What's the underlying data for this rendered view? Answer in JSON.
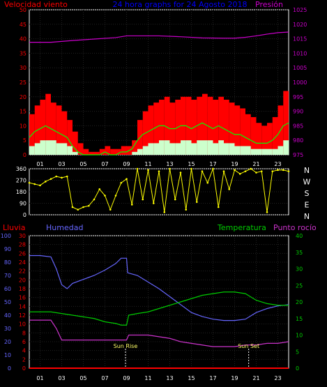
{
  "header": {
    "wind_label": "Velocidad viento",
    "title": "24 hora graphs for 24 Agosto 2018",
    "pressure_label": "Presión"
  },
  "colors": {
    "background": "#000000",
    "axis": "#ffffff",
    "wind_gust": "#ff0000",
    "wind_avg": "#00ff00",
    "wind_low": "#ccffcc",
    "pressure": "#cc00cc",
    "direction": "#ffff00",
    "temperature": "#00cc00",
    "humidity": "#6666ff",
    "dew_point": "#cc33cc",
    "rain": "#ff0000",
    "title": "#0000ff"
  },
  "bottom_header": {
    "rain_label": "Lluvia",
    "humidity_label": "Humedad",
    "temperature_label": "Temperatura",
    "dew_label": "Punto rocío"
  },
  "annotations": {
    "sunrise": "Sun Rise",
    "sunset": "Sun Set"
  },
  "chart_data": [
    {
      "type": "line",
      "id": "wind_pressure",
      "x_ticks": [
        "01",
        "03",
        "05",
        "07",
        "09",
        "11",
        "13",
        "15",
        "17",
        "19",
        "21",
        "23"
      ],
      "xlim": [
        0,
        24
      ],
      "y_left_ticks": [
        "0",
        "5",
        "10",
        "15",
        "20",
        "25",
        "30",
        "35",
        "40",
        "45",
        "50"
      ],
      "y_left_lim": [
        0,
        50
      ],
      "y_right_ticks": [
        "975",
        "980",
        "985",
        "990",
        "995",
        "1000",
        "1005",
        "1010",
        "1015",
        "1020",
        "1025"
      ],
      "y_right_lim": [
        975,
        1025
      ],
      "grid": true,
      "series": [
        {
          "name": "Velocidad viento",
          "style": "gust",
          "x": [
            0,
            0.5,
            1,
            1.5,
            2,
            2.5,
            3,
            3.5,
            4,
            4.5,
            5,
            5.5,
            6,
            6.5,
            7,
            7.5,
            8,
            8.5,
            9,
            9.5,
            10,
            10.5,
            11,
            11.5,
            12,
            12.5,
            13,
            13.5,
            14,
            14.5,
            15,
            15.5,
            16,
            16.5,
            17,
            17.5,
            18,
            18.5,
            19,
            19.5,
            20,
            20.5,
            21,
            21.5,
            22,
            22.5,
            23,
            23.5,
            24
          ],
          "values": [
            14,
            17,
            19,
            21,
            18,
            17,
            15,
            12,
            8,
            4,
            2,
            1,
            1,
            2,
            3,
            2,
            2,
            3,
            3,
            5,
            12,
            15,
            17,
            18,
            19,
            20,
            18,
            19,
            20,
            20,
            19,
            20,
            21,
            20,
            19,
            20,
            19,
            18,
            17,
            16,
            14,
            13,
            11,
            10,
            11,
            13,
            17,
            22,
            23
          ]
        },
        {
          "name": "",
          "style": "average",
          "x": [
            0,
            0.5,
            1,
            1.5,
            2,
            2.5,
            3,
            3.5,
            4,
            4.5,
            5,
            5.5,
            6,
            6.5,
            7,
            7.5,
            8,
            8.5,
            9,
            9.5,
            10,
            10.5,
            11,
            11.5,
            12,
            12.5,
            13,
            13.5,
            14,
            14.5,
            15,
            15.5,
            16,
            16.5,
            17,
            17.5,
            18,
            18.5,
            19,
            19.5,
            20,
            20.5,
            21,
            21.5,
            22,
            22.5,
            23,
            23.5,
            24
          ],
          "values": [
            6,
            8,
            9,
            10,
            9,
            8,
            7,
            6,
            3,
            1,
            0,
            0,
            0,
            0,
            1,
            0,
            0,
            1,
            1,
            2,
            5,
            7,
            8,
            9,
            10,
            10,
            9,
            9,
            10,
            10,
            9,
            10,
            11,
            10,
            9,
            10,
            9,
            8,
            7,
            7,
            6,
            5,
            4,
            4,
            4,
            5,
            7,
            10,
            11
          ]
        },
        {
          "name": "",
          "style": "low",
          "x": [
            0,
            0.5,
            1,
            1.5,
            2,
            2.5,
            3,
            3.5,
            4,
            4.5,
            5,
            5.5,
            6,
            6.5,
            7,
            7.5,
            8,
            8.5,
            9,
            9.5,
            10,
            10.5,
            11,
            11.5,
            12,
            12.5,
            13,
            13.5,
            14,
            14.5,
            15,
            15.5,
            16,
            16.5,
            17,
            17.5,
            18,
            18.5,
            19,
            19.5,
            20,
            20.5,
            21,
            21.5,
            22,
            22.5,
            23,
            23.5,
            24
          ],
          "values": [
            3,
            4,
            5,
            5,
            5,
            4,
            4,
            3,
            1,
            0,
            0,
            0,
            0,
            0,
            0,
            0,
            0,
            0,
            0,
            1,
            2,
            3,
            4,
            4,
            5,
            5,
            4,
            4,
            5,
            5,
            4,
            5,
            5,
            5,
            4,
            5,
            4,
            4,
            3,
            3,
            3,
            2,
            2,
            2,
            2,
            2,
            3,
            5,
            5
          ]
        },
        {
          "name": "Presión",
          "axis": "right",
          "x": [
            0,
            2,
            4,
            6,
            8,
            9,
            10,
            12,
            14,
            16,
            18,
            19,
            20,
            21,
            22,
            23,
            24
          ],
          "values": [
            1013.8,
            1013.8,
            1014.4,
            1014.9,
            1015.4,
            1016,
            1016,
            1016,
            1015.7,
            1015.3,
            1015.2,
            1015.2,
            1015.5,
            1016,
            1016.6,
            1017.1,
            1017.3
          ]
        }
      ]
    },
    {
      "type": "scatter",
      "id": "wind_direction",
      "x_ticks": [
        "01",
        "03",
        "05",
        "07",
        "09",
        "11",
        "13",
        "15",
        "17",
        "19",
        "21",
        "23"
      ],
      "xlim": [
        0,
        24
      ],
      "y_ticks": [
        "0",
        "90",
        "180",
        "270",
        "360"
      ],
      "ylim": [
        0,
        360
      ],
      "compass_labels": [
        "N",
        "W",
        "S",
        "E",
        "N"
      ],
      "series": [
        {
          "name": "",
          "x": [
            0,
            0.5,
            1,
            1.5,
            2,
            2.5,
            3,
            3.5,
            4,
            4.5,
            5,
            5.5,
            6,
            6.5,
            7,
            7.5,
            8,
            8.5,
            9,
            9.5,
            10,
            10.5,
            11,
            11.5,
            12,
            12.5,
            13,
            13.5,
            14,
            14.5,
            15,
            15.5,
            16,
            16.5,
            17,
            17.5,
            18,
            18.5,
            19,
            19.5,
            20,
            20.5,
            21,
            21.5,
            22,
            22.5,
            23,
            23.5,
            24
          ],
          "values": [
            250,
            240,
            230,
            260,
            280,
            300,
            290,
            300,
            60,
            40,
            60,
            70,
            120,
            200,
            150,
            40,
            150,
            250,
            280,
            80,
            360,
            120,
            350,
            90,
            340,
            20,
            360,
            120,
            330,
            40,
            360,
            100,
            340,
            250,
            360,
            60,
            340,
            200,
            350,
            320,
            340,
            360,
            330,
            340,
            20,
            340,
            350,
            350,
            340
          ]
        }
      ]
    },
    {
      "type": "line",
      "id": "temp_humidity",
      "x_ticks": [
        "01",
        "03",
        "05",
        "07",
        "09",
        "11",
        "13",
        "15",
        "17",
        "19",
        "21",
        "23"
      ],
      "xlim": [
        0,
        24
      ],
      "y_rain_ticks": [
        "0",
        "2",
        "4",
        "6",
        "8",
        "10",
        "12",
        "14",
        "16",
        "18",
        "20",
        "22",
        "24",
        "26",
        "28",
        "30"
      ],
      "y_rain_lim": [
        0,
        30
      ],
      "y_humidity_ticks": [
        "0",
        "10",
        "20",
        "30",
        "40",
        "50",
        "60",
        "70",
        "80",
        "90",
        "100"
      ],
      "y_humidity_lim": [
        0,
        100
      ],
      "y_temp_ticks": [
        "0",
        "5",
        "10",
        "15",
        "20",
        "25",
        "30",
        "35",
        "40"
      ],
      "y_temp_lim": [
        0,
        40
      ],
      "series": [
        {
          "name": "Humedad",
          "axis": "humidity",
          "x": [
            0,
            1,
            2,
            2.5,
            3,
            3.5,
            4,
            5,
            6,
            7,
            8,
            8.5,
            9,
            9.1,
            10,
            11,
            12,
            13,
            14,
            15,
            16,
            17,
            18,
            19,
            20,
            21,
            22,
            23,
            24
          ],
          "values": [
            85,
            85,
            84,
            75,
            63,
            60,
            64,
            67,
            70,
            74,
            79,
            83,
            83,
            72,
            70,
            65,
            60,
            54,
            48,
            42,
            39,
            37,
            36,
            36,
            37,
            42,
            45,
            47,
            48
          ]
        },
        {
          "name": "Temperatura",
          "axis": "temp",
          "x": [
            0,
            1,
            2,
            3,
            4,
            5,
            6,
            7,
            8,
            8.5,
            9,
            9.2,
            10,
            11,
            12,
            13,
            14,
            15,
            16,
            17,
            18,
            19,
            20,
            21,
            22,
            23,
            24
          ],
          "values": [
            17,
            17,
            17,
            16.5,
            16,
            15.5,
            15,
            14,
            13.5,
            13,
            13,
            16,
            16.5,
            17,
            18,
            19,
            20,
            21,
            22,
            22.5,
            23,
            23,
            22.5,
            20.5,
            19.5,
            19,
            19
          ]
        },
        {
          "name": "Punto rocío",
          "axis": "temp",
          "x": [
            0,
            1,
            2,
            2.5,
            3,
            4,
            5,
            6,
            7,
            8,
            8.5,
            9,
            9.2,
            10,
            11,
            12,
            13,
            14,
            15,
            16,
            17,
            18,
            19,
            20,
            21,
            22,
            23,
            24
          ],
          "values": [
            14.5,
            14.5,
            14.5,
            12,
            8.5,
            8.5,
            8.5,
            8.5,
            8.5,
            8.5,
            8.5,
            8.5,
            10,
            10,
            10,
            9.5,
            9,
            8,
            7.5,
            7,
            6.5,
            6.5,
            6.5,
            7,
            7,
            7.5,
            7.5,
            8
          ]
        },
        {
          "name": "Lluvia",
          "axis": "rain",
          "x": [
            0,
            24
          ],
          "values": [
            0,
            0
          ]
        }
      ],
      "vlines": {
        "sunrise": 8.9,
        "sunset": 20.3
      }
    }
  ]
}
